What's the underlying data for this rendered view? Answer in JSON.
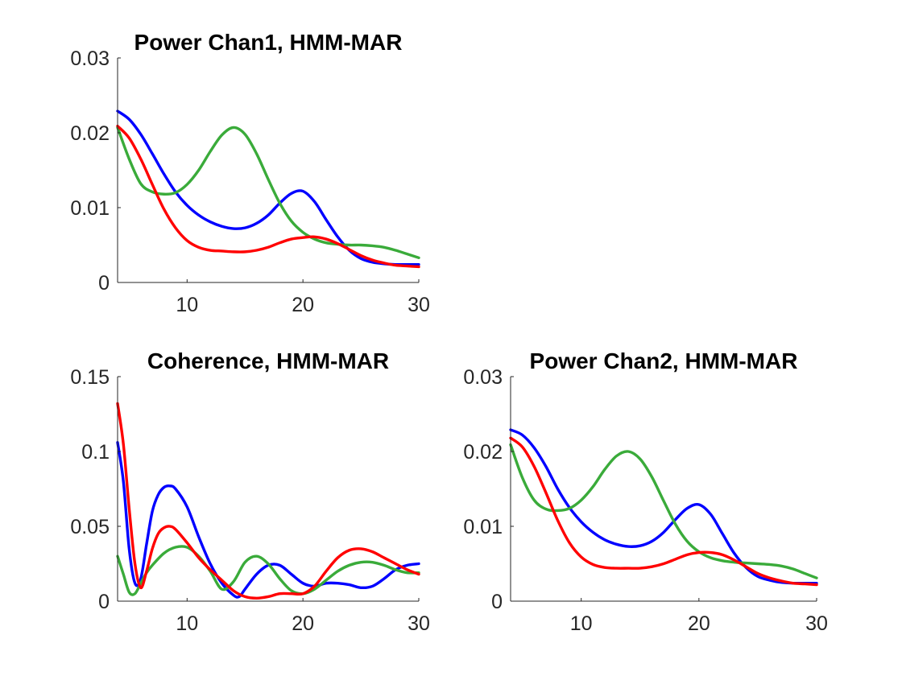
{
  "chart_data": [
    {
      "type": "line",
      "title": "Power Chan1, HMM-MAR",
      "xlabel": "",
      "ylabel": "",
      "xlim": [
        4,
        30
      ],
      "ylim": [
        0,
        0.03
      ],
      "xticks": [
        10,
        20,
        30
      ],
      "yticks": [
        0,
        0.01,
        0.02,
        0.03
      ],
      "xtick_labels": [
        "10",
        "20",
        "30"
      ],
      "ytick_labels": [
        "0",
        "0.01",
        "0.02",
        "0.03"
      ],
      "grid": false,
      "series": [
        {
          "color": "#0000ff",
          "x": [
            4,
            5,
            6,
            7,
            8,
            9,
            10,
            11,
            12,
            13,
            14,
            15,
            16,
            17,
            18,
            19,
            20,
            21,
            22,
            23,
            24,
            25,
            26,
            27,
            28,
            29,
            30
          ],
          "y": [
            0.0229,
            0.0218,
            0.0198,
            0.0172,
            0.0145,
            0.0121,
            0.0103,
            0.009,
            0.0081,
            0.0075,
            0.0072,
            0.0073,
            0.0079,
            0.009,
            0.0106,
            0.0119,
            0.0122,
            0.0108,
            0.0084,
            0.0061,
            0.0043,
            0.0032,
            0.0027,
            0.0025,
            0.0024,
            0.0024,
            0.0024
          ]
        },
        {
          "color": "#3aab3a",
          "x": [
            4,
            5,
            6,
            7,
            8,
            9,
            10,
            11,
            12,
            13,
            14,
            15,
            16,
            17,
            18,
            19,
            20,
            21,
            22,
            23,
            24,
            25,
            26,
            27,
            28,
            29,
            30
          ],
          "y": [
            0.0207,
            0.0165,
            0.0132,
            0.0121,
            0.0118,
            0.012,
            0.0131,
            0.015,
            0.0175,
            0.0197,
            0.0207,
            0.0198,
            0.0172,
            0.0138,
            0.0106,
            0.0082,
            0.0067,
            0.0058,
            0.0053,
            0.0051,
            0.005,
            0.005,
            0.0049,
            0.0047,
            0.0043,
            0.0038,
            0.0033
          ]
        },
        {
          "color": "#ff0000",
          "x": [
            4,
            5,
            6,
            7,
            8,
            9,
            10,
            11,
            12,
            13,
            14,
            15,
            16,
            17,
            18,
            19,
            20,
            21,
            22,
            23,
            24,
            25,
            26,
            27,
            28,
            29,
            30
          ],
          "y": [
            0.0209,
            0.0193,
            0.0165,
            0.0131,
            0.0098,
            0.0073,
            0.0056,
            0.0047,
            0.0043,
            0.0042,
            0.0041,
            0.0041,
            0.0043,
            0.0047,
            0.0053,
            0.0058,
            0.006,
            0.0061,
            0.0058,
            0.0052,
            0.0044,
            0.0036,
            0.003,
            0.0026,
            0.0023,
            0.0022,
            0.0021
          ]
        }
      ]
    },
    {
      "type": "line",
      "title": "Coherence, HMM-MAR",
      "xlabel": "",
      "ylabel": "",
      "xlim": [
        4,
        30
      ],
      "ylim": [
        0,
        0.15
      ],
      "xticks": [
        10,
        20,
        30
      ],
      "yticks": [
        0,
        0.05,
        0.1,
        0.15
      ],
      "xtick_labels": [
        "10",
        "20",
        "30"
      ],
      "ytick_labels": [
        "0",
        "0.05",
        "0.1",
        "0.15"
      ],
      "grid": false,
      "series": [
        {
          "color": "#0000ff",
          "x": [
            4,
            4.5,
            5,
            5.5,
            6,
            6.5,
            7,
            7.5,
            8,
            8.5,
            9,
            10,
            11,
            12,
            13,
            14,
            14.5,
            15,
            16,
            17,
            18,
            19,
            20,
            21,
            22,
            23,
            24,
            25,
            26,
            27,
            28,
            29,
            30
          ],
          "y": [
            0.106,
            0.08,
            0.035,
            0.012,
            0.015,
            0.038,
            0.06,
            0.071,
            0.076,
            0.077,
            0.075,
            0.063,
            0.043,
            0.025,
            0.012,
            0.004,
            0.003,
            0.008,
            0.018,
            0.024,
            0.024,
            0.018,
            0.012,
            0.01,
            0.012,
            0.012,
            0.011,
            0.009,
            0.01,
            0.015,
            0.021,
            0.024,
            0.025
          ]
        },
        {
          "color": "#3aab3a",
          "x": [
            4,
            4.5,
            5,
            5.5,
            6,
            6.5,
            7,
            8,
            9,
            10,
            11,
            12,
            13,
            14,
            15,
            16,
            17,
            18,
            19,
            20,
            21,
            22,
            23,
            24,
            25,
            26,
            27,
            28,
            29,
            30
          ],
          "y": [
            0.03,
            0.018,
            0.006,
            0.005,
            0.012,
            0.019,
            0.024,
            0.032,
            0.036,
            0.036,
            0.03,
            0.02,
            0.008,
            0.013,
            0.026,
            0.03,
            0.025,
            0.015,
            0.007,
            0.005,
            0.008,
            0.014,
            0.02,
            0.024,
            0.026,
            0.026,
            0.024,
            0.021,
            0.019,
            0.019
          ]
        },
        {
          "color": "#ff0000",
          "x": [
            4,
            4.5,
            5,
            5.5,
            6,
            6.5,
            7,
            7.5,
            8,
            8.5,
            9,
            10,
            11,
            12,
            13,
            14,
            15,
            16,
            17,
            18,
            19,
            20,
            21,
            22,
            23,
            24,
            25,
            26,
            27,
            28,
            29,
            30
          ],
          "y": [
            0.132,
            0.105,
            0.062,
            0.025,
            0.009,
            0.02,
            0.035,
            0.045,
            0.049,
            0.05,
            0.048,
            0.039,
            0.029,
            0.021,
            0.014,
            0.007,
            0.003,
            0.002,
            0.003,
            0.005,
            0.005,
            0.005,
            0.01,
            0.02,
            0.029,
            0.034,
            0.035,
            0.033,
            0.029,
            0.025,
            0.021,
            0.018
          ]
        }
      ]
    },
    {
      "type": "line",
      "title": "Power Chan2, HMM-MAR",
      "xlabel": "",
      "ylabel": "",
      "xlim": [
        4,
        30
      ],
      "ylim": [
        0,
        0.03
      ],
      "xticks": [
        10,
        20,
        30
      ],
      "yticks": [
        0,
        0.01,
        0.02,
        0.03
      ],
      "xtick_labels": [
        "10",
        "20",
        "30"
      ],
      "ytick_labels": [
        "0",
        "0.01",
        "0.02",
        "0.03"
      ],
      "grid": false,
      "series": [
        {
          "color": "#0000ff",
          "x": [
            4,
            5,
            6,
            7,
            8,
            9,
            10,
            11,
            12,
            13,
            14,
            15,
            16,
            17,
            18,
            19,
            20,
            21,
            22,
            23,
            24,
            25,
            26,
            27,
            28,
            29,
            30
          ],
          "y": [
            0.0229,
            0.0222,
            0.0205,
            0.018,
            0.015,
            0.0125,
            0.0106,
            0.0092,
            0.0082,
            0.0076,
            0.0073,
            0.0074,
            0.008,
            0.0092,
            0.0109,
            0.0124,
            0.0129,
            0.0116,
            0.009,
            0.0064,
            0.0045,
            0.0033,
            0.0028,
            0.0025,
            0.0024,
            0.0024,
            0.0024
          ]
        },
        {
          "color": "#3aab3a",
          "x": [
            4,
            5,
            6,
            7,
            8,
            9,
            10,
            11,
            12,
            13,
            14,
            15,
            16,
            17,
            18,
            19,
            20,
            21,
            22,
            23,
            24,
            25,
            26,
            27,
            28,
            29,
            30
          ],
          "y": [
            0.0209,
            0.0165,
            0.0135,
            0.0123,
            0.0121,
            0.0124,
            0.0135,
            0.0153,
            0.0176,
            0.0194,
            0.02,
            0.019,
            0.0166,
            0.0134,
            0.0103,
            0.008,
            0.0066,
            0.0058,
            0.0054,
            0.0052,
            0.0051,
            0.005,
            0.0049,
            0.0047,
            0.0043,
            0.0037,
            0.0031
          ]
        },
        {
          "color": "#ff0000",
          "x": [
            4,
            5,
            6,
            7,
            8,
            9,
            10,
            11,
            12,
            13,
            14,
            15,
            16,
            17,
            18,
            19,
            20,
            21,
            22,
            23,
            24,
            25,
            26,
            27,
            28,
            29,
            30
          ],
          "y": [
            0.0218,
            0.0206,
            0.018,
            0.0145,
            0.0108,
            0.0078,
            0.0059,
            0.0049,
            0.0045,
            0.0044,
            0.0044,
            0.0044,
            0.0046,
            0.005,
            0.0056,
            0.0062,
            0.0065,
            0.0065,
            0.0062,
            0.0055,
            0.0046,
            0.0037,
            0.0031,
            0.0027,
            0.0024,
            0.0023,
            0.0022
          ]
        }
      ]
    }
  ]
}
